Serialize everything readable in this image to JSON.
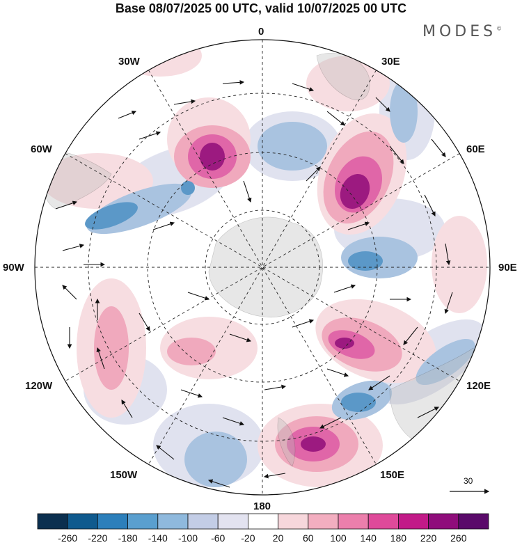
{
  "title": "Base 08/07/2025 00 UTC, valid 10/07/2025 00 UTC",
  "brand": "MODES",
  "brand_mark": "©",
  "longitude_labels": {
    "lon_0": "0",
    "lon_30e": "30E",
    "lon_60e": "60E",
    "lon_90e": "90E",
    "lon_120e": "120E",
    "lon_150e": "150E",
    "lon_180": "180",
    "lon_150w": "150W",
    "lon_120w": "120W",
    "lon_90w": "90W",
    "lon_60w": "60W",
    "lon_30w": "30W"
  },
  "vector_scale_label": "30",
  "colorbar": {
    "labels": [
      "-260",
      "-220",
      "-180",
      "-140",
      "-100",
      "-60",
      "-20",
      "20",
      "60",
      "100",
      "140",
      "180",
      "220",
      "260"
    ],
    "colors": [
      "#0b2f4f",
      "#0f5a8e",
      "#2c7fbb",
      "#5a9fcf",
      "#8fb9dd",
      "#c3cde6",
      "#e3e3f0",
      "#ffffff",
      "#f7d7dc",
      "#f3aec0",
      "#ec7fac",
      "#df4a9a",
      "#c21a88",
      "#8f0d7b",
      "#5a0a6a"
    ]
  },
  "map": {
    "projection": "south-polar-stereographic",
    "field_colors": {
      "neg_weak": "#d8dcec",
      "neg_mid": "#a9c3e0",
      "neg_strong": "#5b98c8",
      "neg_core": "#2c6aa0",
      "pos_weak": "#f6d9dd",
      "pos_mid": "#f0a9bd",
      "pos_strong": "#e066a8",
      "pos_core": "#a3187f",
      "land": "#bdbdbd"
    }
  }
}
